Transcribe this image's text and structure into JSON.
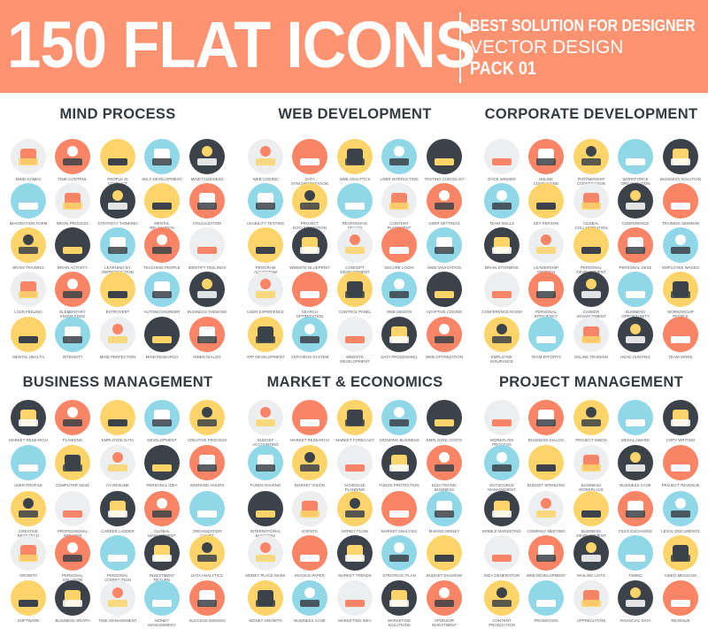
{
  "banner": {
    "title": "150 FLAT ICONS",
    "tagline": "BEST SOLUTION FOR DESIGNER",
    "subtitle": "VECTOR DESIGN",
    "pack": "PACK 01",
    "color": "#fe9371"
  },
  "palette": {
    "gray": "#eceef0",
    "coral": "#fa8466",
    "yellow": "#fdd46a",
    "blue": "#90d8e8",
    "dark": "#3b4249"
  },
  "sections": [
    {
      "title": "MIND PROCESS",
      "colors": [
        "gray",
        "coral",
        "yellow",
        "blue",
        "dark",
        "blue",
        "gray",
        "dark",
        "yellow",
        "coral",
        "yellow",
        "dark",
        "blue",
        "coral",
        "gray",
        "gray",
        "coral",
        "yellow",
        "blue",
        "dark",
        "yellow",
        "blue",
        "gray",
        "dark",
        "coral"
      ],
      "icons": [
        "Mind Games",
        "Time Control",
        "People in Conflict",
        "Self Development",
        "Mind Fuzziness",
        "Imagination Form",
        "Brain Process",
        "Strategy Thinking",
        "Mental Relaxation",
        "Visualization",
        "Brain Training",
        "Brain Activity",
        "Learning by Reproduction",
        "Teaching People",
        "Identify Feelings",
        "Love Feeling",
        "Elementary Knowledge",
        "Extrovert",
        "Autism Disorder",
        "Business Thinking",
        "Mental Health",
        "Intensity",
        "Mind Perfection",
        "Mind Research",
        "Inner Dialog"
      ]
    },
    {
      "title": "WEB DEVELOPMENT",
      "colors": [
        "gray",
        "coral",
        "yellow",
        "blue",
        "dark",
        "blue",
        "yellow",
        "blue",
        "gray",
        "coral",
        "yellow",
        "dark",
        "gray",
        "coral",
        "blue",
        "gray",
        "coral",
        "yellow",
        "blue",
        "dark",
        "yellow",
        "blue",
        "gray",
        "dark",
        "coral"
      ],
      "icons": [
        "Web Coding",
        "Data Synchronization",
        "Web Analytics",
        "User Interaction",
        "Testing Checklist",
        "Usability Testing",
        "Project Documentation",
        "Responsive Design",
        "Content Placement",
        "User Settings",
        "Program Algorithm",
        "Website Blueprint",
        "Concept Development",
        "Secure Login",
        "Web Navigation",
        "User Experience",
        "Search Optimization",
        "Control Panel",
        "Web Design",
        "Adaptive Coding",
        "App Development",
        "Antivirus System",
        "Website Development",
        "Data Processing",
        "Web Optimization"
      ]
    },
    {
      "title": "CORPORATE DEVELOPMENT",
      "colors": [
        "gray",
        "coral",
        "yellow",
        "blue",
        "dark",
        "blue",
        "yellow",
        "gray",
        "dark",
        "coral",
        "dark",
        "gray",
        "yellow",
        "coral",
        "blue",
        "gray",
        "coral",
        "dark",
        "blue",
        "yellow",
        "yellow",
        "blue",
        "gray",
        "dark",
        "coral"
      ],
      "icons": [
        "Race Winner",
        "Online Consulting",
        "Partnership Cooperation",
        "Workforce Organization",
        "Business Solution",
        "Team Skills",
        "Key Person",
        "Global Collaboration",
        "Conference",
        "Training Seminar",
        "Brain Storming",
        "Leadership Growth",
        "Personal Development",
        "Personal Desk",
        "Employee Wages",
        "Conference Room",
        "Personal Efficiency",
        "Career Advancement",
        "Business Opportunity",
        "Workgroup People",
        "Employee Insurance",
        "Team Efforts",
        "Online Training",
        "Head Hunting",
        "Team Work"
      ]
    },
    {
      "title": "BUSINESS MANAGEMENT",
      "colors": [
        "dark",
        "coral",
        "yellow",
        "blue",
        "yellow",
        "blue",
        "yellow",
        "gray",
        "dark",
        "coral",
        "yellow",
        "gray",
        "dark",
        "coral",
        "blue",
        "gray",
        "coral",
        "blue",
        "dark",
        "yellow",
        "yellow",
        "dark",
        "gray",
        "blue",
        "coral"
      ],
      "icons": [
        "Market Research",
        "Planning",
        "Employee Data",
        "Development",
        "Creative Process",
        "User Profile",
        "Computer Desk",
        "CV Resume",
        "Personal Idea",
        "Working Hours",
        "Creative Research",
        "Professional Speaker",
        "Career Ladder",
        "Global Management",
        "Organization Chart",
        "Growth",
        "Personal Solution",
        "Personal Connection",
        "Investment Return",
        "Data Analytics",
        "Software",
        "Business Graph",
        "Time Management",
        "Money Management",
        "Success Mission"
      ]
    },
    {
      "title": "MARKET & ECONOMICS",
      "colors": [
        "gray",
        "coral",
        "yellow",
        "blue",
        "dark",
        "blue",
        "yellow",
        "gray",
        "dark",
        "coral",
        "dark",
        "gray",
        "yellow",
        "coral",
        "blue",
        "gray",
        "coral",
        "dark",
        "blue",
        "yellow",
        "yellow",
        "blue",
        "gray",
        "dark",
        "coral"
      ],
      "icons": [
        "Budget Accounting",
        "Market Research",
        "Market Forecast",
        "Growing Business",
        "Employee Costs",
        "Funds Raising",
        "Market Vision",
        "Schedule Planning",
        "Funds Protection",
        "Electronic Business",
        "International Business",
        "Events",
        "Money Flow",
        "Market Analysis",
        "Making Money",
        "Money Place Mark",
        "Invoice Paper",
        "Market Trends",
        "Strategic Plan",
        "Budget Diagram",
        "Money Growth",
        "Business Case",
        "Marketing Idea",
        "Marketing Solutions",
        "Sponsor Investment"
      ]
    },
    {
      "title": "PROJECT MANAGEMENT",
      "colors": [
        "gray",
        "coral",
        "yellow",
        "blue",
        "dark",
        "blue",
        "yellow",
        "gray",
        "dark",
        "coral",
        "dark",
        "gray",
        "yellow",
        "coral",
        "blue",
        "gray",
        "coral",
        "dark",
        "blue",
        "yellow",
        "yellow",
        "blue",
        "gray",
        "dark",
        "coral"
      ],
      "icons": [
        "Workflow Process",
        "Business Dialog",
        "Project Inbox",
        "Medal Award",
        "Copy Writing",
        "Outsource Management",
        "Budget Spending",
        "Business Workplace",
        "Business Case",
        "Project Revenue",
        "Mobile Marketing",
        "Company Meeting",
        "Business Development",
        "Files Exchange",
        "Legal Documents",
        "Idea Generation",
        "Web Development",
        "Mailing Lists",
        "Timing",
        "Video Message",
        "Content Production",
        "Promotion",
        "Appreciation",
        "Financial Data",
        "Revenue"
      ]
    }
  ]
}
